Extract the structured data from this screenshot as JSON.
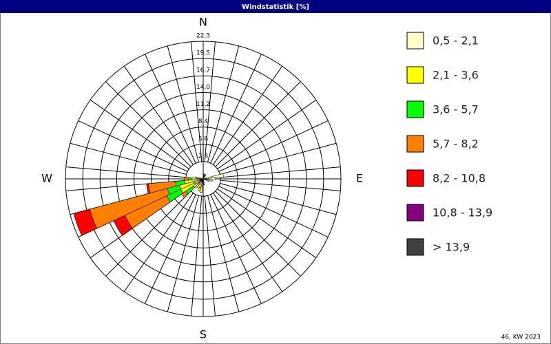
{
  "chart_data": {
    "type": "windrose",
    "title": "Windstatistik [%]",
    "footnote": "46. KW 2023",
    "compass": [
      {
        "label": "N",
        "angle": 0
      },
      {
        "label": "E",
        "angle": 90
      },
      {
        "label": "S",
        "angle": 180
      },
      {
        "label": "W",
        "angle": 270
      }
    ],
    "x": [
      0,
      10,
      20,
      30,
      40,
      50,
      60,
      70,
      80,
      90,
      100,
      110,
      120,
      130,
      140,
      150,
      160,
      170,
      180,
      190,
      200,
      210,
      220,
      230,
      240,
      250,
      260,
      270,
      280,
      290,
      300,
      310,
      320,
      330,
      340,
      350
    ],
    "rlim": [
      0,
      22.3
    ],
    "rticks": [
      {
        "value": 2.8,
        "label": "2,8"
      },
      {
        "value": 5.6,
        "label": "5,6"
      },
      {
        "value": 8.4,
        "label": "8,4"
      },
      {
        "value": 11.2,
        "label": "11,2"
      },
      {
        "value": 14.0,
        "label": "14,0"
      },
      {
        "value": 16.7,
        "label": "16,7"
      },
      {
        "value": 19.5,
        "label": "19,5"
      },
      {
        "value": 22.3,
        "label": "22,3"
      }
    ],
    "series": [
      {
        "name": "0,5 - 2,1",
        "color": "#ffffc8",
        "values": [
          0,
          0.8,
          0.8,
          0.8,
          0,
          0,
          0,
          0,
          3.3,
          2.0,
          1.5,
          1.0,
          0,
          0,
          0,
          0,
          0,
          1.0,
          0,
          1.2,
          1.5,
          0,
          1.0,
          1.0,
          1.5,
          1.7,
          1.5,
          1.0,
          0.8,
          0,
          0,
          0,
          0,
          0,
          0,
          0
        ]
      },
      {
        "name": "2,1 - 3,6",
        "color": "#ffff00",
        "values": [
          0,
          0,
          0,
          0,
          0,
          0,
          0,
          0,
          0,
          0,
          0,
          0,
          0,
          0,
          0,
          0,
          0,
          0,
          0,
          1.0,
          0.5,
          0,
          0.8,
          1.0,
          2.5,
          2.3,
          1.5,
          0.8,
          0.5,
          0,
          0,
          0,
          0,
          0,
          0,
          0
        ]
      },
      {
        "name": "3,6 - 5,7",
        "color": "#00ff00",
        "values": [
          0,
          0,
          0,
          0,
          0,
          0,
          0,
          0,
          0,
          0,
          0,
          0,
          0,
          0,
          0,
          0,
          0,
          0,
          0,
          0,
          0,
          0,
          0,
          1.5,
          2.5,
          2.0,
          1.5,
          0.6,
          0,
          0,
          0,
          0,
          0,
          0,
          0,
          0
        ]
      },
      {
        "name": "5,7 - 8,2",
        "color": "#ff8000",
        "values": [
          0,
          0,
          0,
          0,
          0,
          0,
          0,
          0,
          0,
          0,
          0,
          0,
          0,
          0,
          0,
          0,
          0,
          0,
          0,
          0,
          0,
          0,
          0,
          0.8,
          7.5,
          13,
          4.4,
          0.7,
          0,
          0,
          0,
          0,
          0,
          0,
          0,
          0
        ]
      },
      {
        "name": "8,2 - 10,8",
        "color": "#ff0000",
        "values": [
          0,
          0,
          0,
          0,
          0,
          0,
          0,
          0,
          0,
          0,
          0,
          0,
          0,
          0,
          0,
          0,
          0,
          0,
          0,
          0,
          0,
          0,
          0,
          0,
          2.0,
          2.7,
          0.3,
          0,
          0,
          0,
          0,
          0,
          0,
          0,
          0,
          0
        ]
      },
      {
        "name": "10,8 - 13,9",
        "color": "#800080",
        "values": [
          0,
          0,
          0,
          0,
          0,
          0,
          0,
          0,
          0,
          0,
          0,
          0,
          0,
          0,
          0,
          0,
          0,
          0,
          0,
          0,
          0,
          0,
          0,
          0,
          0,
          0,
          0,
          0,
          0,
          0,
          0,
          0,
          0,
          0,
          0,
          0
        ]
      },
      {
        "name": "> 13,9",
        "color": "#404040",
        "values": [
          0,
          0,
          0,
          0,
          0,
          0,
          0,
          0,
          0,
          0,
          0,
          0,
          0,
          0,
          0,
          0,
          0,
          0,
          0,
          0,
          0,
          0,
          0,
          0,
          0,
          0,
          0,
          0,
          0,
          0,
          0,
          0,
          0,
          0,
          0,
          0
        ]
      }
    ]
  }
}
